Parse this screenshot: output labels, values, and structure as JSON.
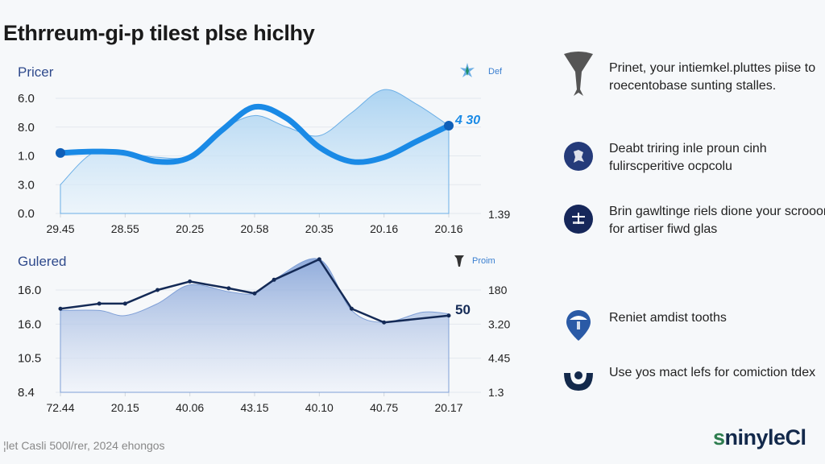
{
  "title": "Ethrreum-gi-p tiIest plse hiclhy",
  "footer": "¦let Casli 500l/rer, 2024 ehongos",
  "brand": {
    "first": "s",
    "rest": "ninyleCl"
  },
  "colors": {
    "top_line": "#1a8ae6",
    "top_fill": "#a9d2f2",
    "top_marker": "#0f5fb8",
    "bot_line": "#142a56",
    "bot_fill": "#7f9fd6",
    "title_blue": "#2f4a8c",
    "icon_navy": "#1b2f66"
  },
  "sidebar": [
    {
      "icon": "funnel-icon",
      "text": "Prinet, your intiemkel.pluttes piise to roecentobase sunting stalles."
    },
    {
      "icon": "settings-badge-icon",
      "text": "Deabt triring inle proun cinh fulirscperitive ocpcolu"
    },
    {
      "icon": "scale-badge-icon",
      "text": "Brin gawltinge riels dione your scrooon for artiser fiwd glas"
    },
    {
      "icon": "map-pin-icon",
      "text": "Reniet amdist tooths"
    },
    {
      "icon": "target-icon",
      "text": "Use yos mact lefs for comiction tdex"
    }
  ],
  "chart_data": [
    {
      "type": "area",
      "title": "Pricer",
      "y_tick_labels": [
        "6.0",
        "8.0",
        "1.0",
        "3.0",
        "0.0"
      ],
      "y_axis_note": "tick labels read top-to-bottom; plotted on index scale 4 (top) to 0 (bottom)",
      "ylim": [
        0,
        4
      ],
      "x_tick_labels": [
        "29.45",
        "28.55",
        "20.25",
        "20.58",
        "20.35",
        "20.16",
        "20.16"
      ],
      "right_label": "1.39",
      "legend": {
        "label": "Def",
        "icon": "star-icon",
        "position": "top-right"
      },
      "end_value_label": "4 30",
      "grid": true,
      "series": [
        {
          "name": "line",
          "style": "thick-line",
          "x": [
            0,
            0.5,
            1,
            1.5,
            2,
            2.5,
            3,
            3.5,
            4,
            4.5,
            5,
            5.5,
            6
          ],
          "values": [
            2.1,
            2.15,
            2.1,
            1.8,
            1.95,
            2.9,
            3.7,
            3.3,
            2.3,
            1.8,
            1.95,
            2.5,
            3.05
          ]
        },
        {
          "name": "area",
          "style": "filled-area",
          "x": [
            0,
            0.5,
            1,
            1.5,
            2,
            2.5,
            3,
            3.5,
            4,
            4.5,
            5,
            5.5,
            6
          ],
          "values": [
            1.0,
            2.1,
            2.1,
            1.95,
            2.0,
            2.9,
            3.4,
            3.0,
            2.7,
            3.5,
            4.3,
            3.8,
            3.05
          ]
        }
      ]
    },
    {
      "type": "area",
      "title": "Gulered",
      "y_tick_labels": [
        "16.0",
        "16.0",
        "10.5",
        "8.4"
      ],
      "y_axis_note": "tick labels read top-to-bottom; plotted on index scale 3 (top) to 0 (bottom)",
      "ylim": [
        0,
        3
      ],
      "x_tick_labels": [
        "72.44",
        "20.15",
        "40.06",
        "43.15",
        "40.10",
        "40.75",
        "20.17"
      ],
      "right_tick_labels": [
        "180",
        "3.20",
        "4.45",
        "1.3"
      ],
      "legend": {
        "label": "Proim",
        "icon": "pin-icon",
        "position": "top-right"
      },
      "end_value_label": "50",
      "grid": true,
      "series": [
        {
          "name": "line",
          "style": "thin-line-markers",
          "x": [
            0,
            0.6,
            1,
            1.5,
            2,
            2.6,
            3,
            3.3,
            4,
            4.5,
            5,
            6
          ],
          "values": [
            2.45,
            2.6,
            2.6,
            3.0,
            3.25,
            3.05,
            2.9,
            3.3,
            3.9,
            2.45,
            2.05,
            2.25
          ]
        },
        {
          "name": "area",
          "style": "filled-area",
          "x": [
            0,
            0.6,
            1,
            1.5,
            2,
            2.6,
            3,
            3.3,
            4,
            4.5,
            5,
            5.6,
            6
          ],
          "values": [
            2.4,
            2.4,
            2.25,
            2.6,
            3.15,
            2.95,
            2.9,
            3.3,
            3.9,
            2.4,
            2.05,
            2.35,
            2.3
          ]
        }
      ]
    }
  ]
}
